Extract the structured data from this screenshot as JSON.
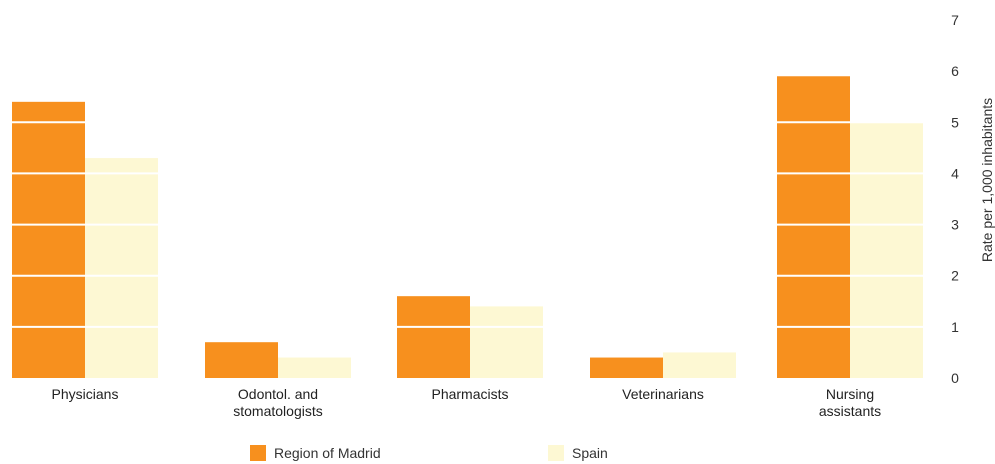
{
  "chart_data": {
    "type": "bar",
    "categories": [
      [
        "Physicians"
      ],
      [
        "Odontol. and",
        "stomatologists"
      ],
      [
        "Pharmacists"
      ],
      [
        "Veterinarians"
      ],
      [
        "Nursing",
        "assistants"
      ]
    ],
    "series": [
      {
        "name": "Region of Madrid",
        "color": "#f7901e",
        "values": [
          5.4,
          0.7,
          1.6,
          0.4,
          5.9
        ]
      },
      {
        "name": "Spain",
        "color": "#fdf8d3",
        "values": [
          4.3,
          0.4,
          1.4,
          0.5,
          5.0
        ]
      }
    ],
    "ylabel": "Rate per 1,000 inhabitants",
    "ylim": [
      0,
      7
    ],
    "yticks": [
      0,
      1,
      2,
      3,
      4,
      5,
      6,
      7
    ],
    "grid": "white lines across bars at each unit",
    "legend_position": "bottom",
    "title": "",
    "xlabel": ""
  },
  "legend": {
    "madrid_label": "Region of Madrid",
    "spain_label": "Spain"
  }
}
